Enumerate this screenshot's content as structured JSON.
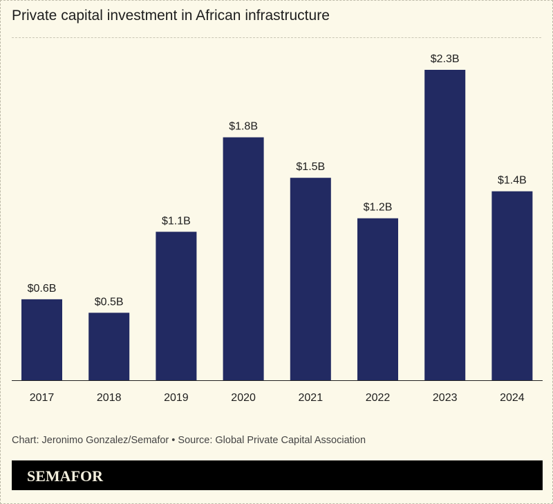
{
  "chart_data": {
    "type": "bar",
    "title": "Private capital investment in African infrastructure",
    "categories": [
      "2017",
      "2018",
      "2019",
      "2020",
      "2021",
      "2022",
      "2023",
      "2024"
    ],
    "values": [
      0.6,
      0.5,
      1.1,
      1.8,
      1.5,
      1.2,
      2.3,
      1.4
    ],
    "data_labels": [
      "$0.6B",
      "$0.5B",
      "$1.1B",
      "$1.8B",
      "$1.5B",
      "$1.2B",
      "$2.3B",
      "$1.4B"
    ],
    "unit": "billion USD",
    "ylim": [
      0,
      2.3
    ],
    "grid": false,
    "bar_color": "#222a62"
  },
  "footer": "Chart: Jeronimo Gonzalez/Semafor • Source: Global Private Capital Association",
  "brand": "SEMAFOR"
}
